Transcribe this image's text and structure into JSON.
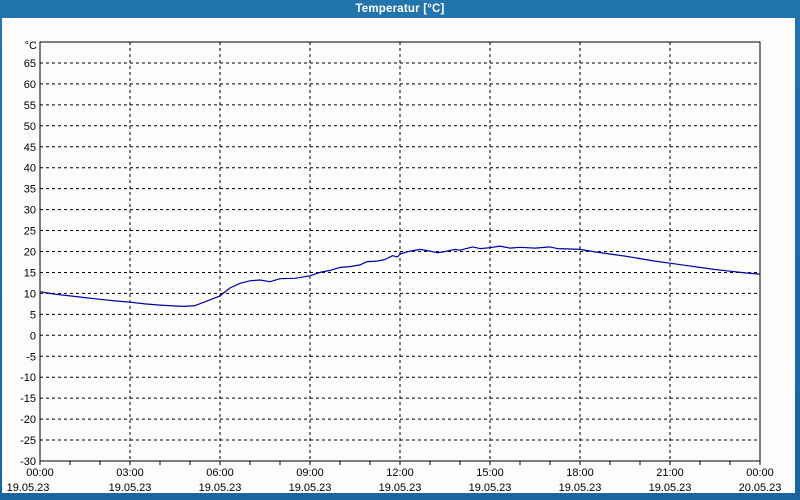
{
  "window": {
    "title": "Temperatur [°C]"
  },
  "colors": {
    "frame_blue": "#1d6ca6",
    "title_text": "#ffffff",
    "plot_background": "#fcfdfa",
    "grid_line": "#000000",
    "series_line": "#0000a8"
  },
  "chart_data": {
    "type": "line",
    "title": "Temperatur [°C]",
    "ylabel": "°C",
    "xlabel": "",
    "grid": true,
    "legend": "none",
    "ylim": [
      -30,
      70
    ],
    "xlim_hours": [
      0,
      24
    ],
    "y_ticks": [
      65,
      60,
      55,
      50,
      45,
      40,
      35,
      30,
      25,
      20,
      15,
      10,
      5,
      0,
      -5,
      -10,
      -15,
      -20,
      -25,
      -30
    ],
    "x_ticks": [
      {
        "hour": 0,
        "time": "00:00",
        "date": "19.05.23"
      },
      {
        "hour": 3,
        "time": "03:00",
        "date": "19.05.23"
      },
      {
        "hour": 6,
        "time": "06:00",
        "date": "19.05.23"
      },
      {
        "hour": 9,
        "time": "09:00",
        "date": "19.05.23"
      },
      {
        "hour": 12,
        "time": "12:00",
        "date": "19.05.23"
      },
      {
        "hour": 15,
        "time": "15:00",
        "date": "19.05.23"
      },
      {
        "hour": 18,
        "time": "18:00",
        "date": "19.05.23"
      },
      {
        "hour": 21,
        "time": "21:00",
        "date": "19.05.23"
      },
      {
        "hour": 24,
        "time": "00:00",
        "date": "20.05.23"
      }
    ],
    "minor_tick_every_hours": 1,
    "series": [
      {
        "name": "Temperatur",
        "color": "#0000a8",
        "points": [
          [
            0.0,
            10.4
          ],
          [
            0.25,
            10.1
          ],
          [
            0.5,
            9.8
          ],
          [
            1.0,
            9.4
          ],
          [
            1.5,
            9.0
          ],
          [
            2.0,
            8.6
          ],
          [
            2.5,
            8.2
          ],
          [
            3.0,
            7.9
          ],
          [
            3.5,
            7.5
          ],
          [
            4.0,
            7.2
          ],
          [
            4.5,
            7.0
          ],
          [
            4.83,
            6.9
          ],
          [
            5.17,
            7.1
          ],
          [
            5.5,
            8.0
          ],
          [
            6.0,
            9.4
          ],
          [
            6.33,
            11.3
          ],
          [
            6.67,
            12.4
          ],
          [
            7.0,
            13.0
          ],
          [
            7.33,
            13.2
          ],
          [
            7.67,
            12.8
          ],
          [
            8.0,
            13.5
          ],
          [
            8.5,
            13.6
          ],
          [
            9.0,
            14.2
          ],
          [
            9.33,
            15.0
          ],
          [
            9.67,
            15.5
          ],
          [
            10.0,
            16.2
          ],
          [
            10.33,
            16.4
          ],
          [
            10.67,
            16.8
          ],
          [
            10.9,
            17.6
          ],
          [
            11.25,
            17.7
          ],
          [
            11.5,
            18.1
          ],
          [
            11.75,
            19.0
          ],
          [
            11.92,
            18.7
          ],
          [
            12.0,
            19.4
          ],
          [
            12.33,
            20.1
          ],
          [
            12.67,
            20.5
          ],
          [
            13.0,
            20.1
          ],
          [
            13.25,
            19.7
          ],
          [
            13.5,
            20.0
          ],
          [
            13.83,
            20.5
          ],
          [
            14.0,
            20.3
          ],
          [
            14.42,
            21.1
          ],
          [
            14.67,
            20.7
          ],
          [
            15.0,
            20.9
          ],
          [
            15.33,
            21.3
          ],
          [
            15.67,
            20.8
          ],
          [
            16.0,
            21.0
          ],
          [
            16.5,
            20.8
          ],
          [
            17.0,
            21.1
          ],
          [
            17.25,
            20.7
          ],
          [
            17.67,
            20.6
          ],
          [
            18.0,
            20.5
          ],
          [
            18.5,
            19.9
          ],
          [
            19.0,
            19.4
          ],
          [
            19.5,
            18.9
          ],
          [
            20.0,
            18.3
          ],
          [
            20.5,
            17.7
          ],
          [
            21.0,
            17.2
          ],
          [
            21.5,
            16.7
          ],
          [
            22.0,
            16.2
          ],
          [
            22.5,
            15.7
          ],
          [
            23.0,
            15.3
          ],
          [
            23.5,
            14.9
          ],
          [
            24.0,
            14.6
          ]
        ]
      }
    ]
  }
}
